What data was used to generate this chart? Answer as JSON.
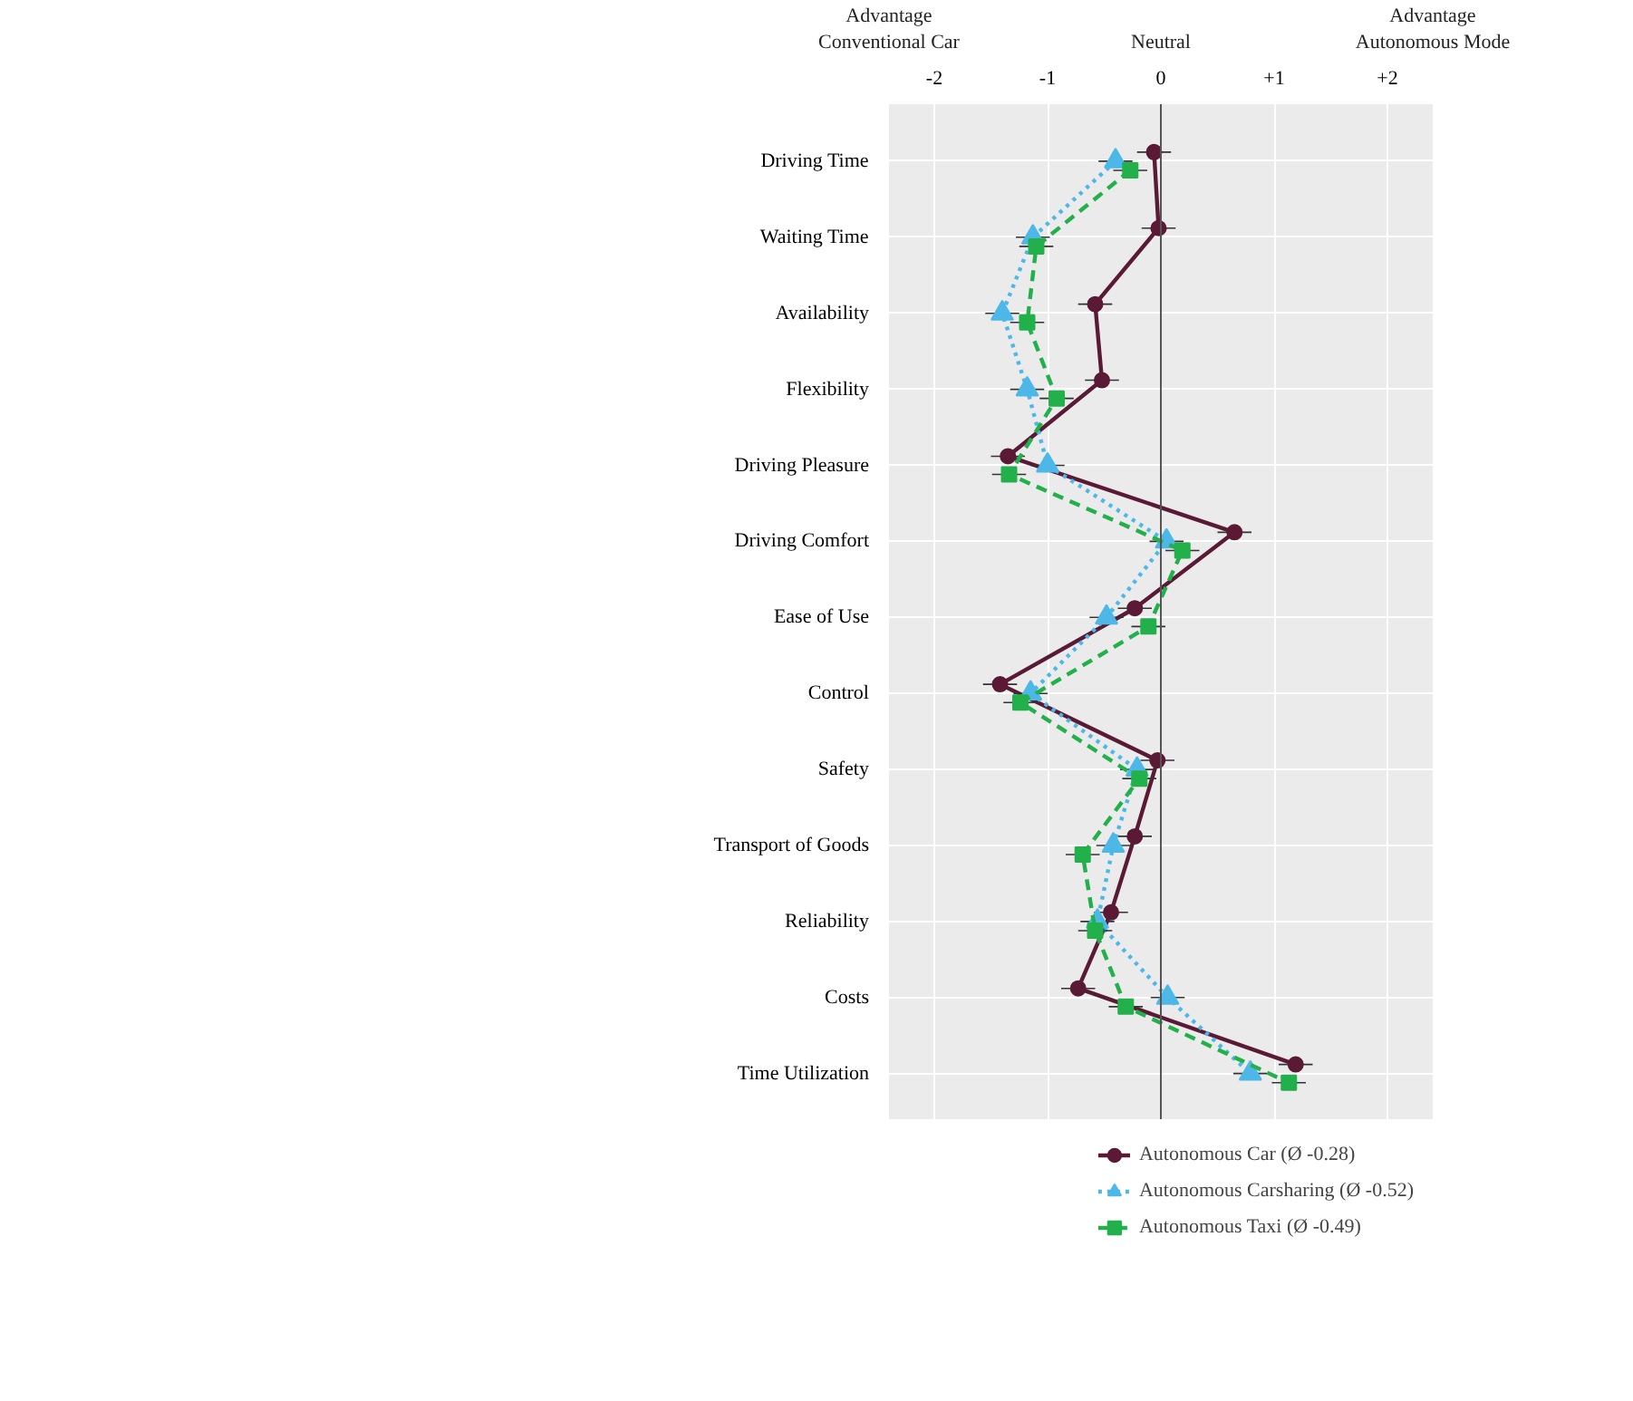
{
  "chart_data": {
    "type": "line",
    "orientation": "horizontal",
    "categories": [
      "Driving Time",
      "Waiting Time",
      "Availability",
      "Flexibility",
      "Driving Pleasure",
      "Driving Comfort",
      "Ease of Use",
      "Control",
      "Safety",
      "Transport of Goods",
      "Reliability",
      "Costs",
      "Time Utilization"
    ],
    "series": [
      {
        "name": "Autonomous Car (Ø -0.28)",
        "color": "#5a1a35",
        "marker": "circle",
        "line_style": "solid",
        "values": [
          -0.06,
          -0.02,
          -0.58,
          -0.52,
          -1.35,
          0.65,
          -0.23,
          -1.42,
          -0.03,
          -0.23,
          -0.44,
          -0.73,
          1.19
        ],
        "errors": [
          0.15,
          0.15,
          0.15,
          0.15,
          0.15,
          0.15,
          0.15,
          0.15,
          0.15,
          0.15,
          0.15,
          0.15,
          0.15
        ]
      },
      {
        "name": "Autonomous Carsharing (Ø -0.52)",
        "color": "#4db8e8",
        "marker": "triangle",
        "line_style": "dotted",
        "values": [
          -0.4,
          -1.13,
          -1.4,
          -1.18,
          -1.0,
          0.05,
          -0.48,
          -1.15,
          -0.21,
          -0.42,
          -0.56,
          0.06,
          0.79
        ],
        "errors": [
          0.15,
          0.15,
          0.15,
          0.15,
          0.15,
          0.15,
          0.15,
          0.15,
          0.15,
          0.15,
          0.15,
          0.15,
          0.15
        ]
      },
      {
        "name": "Autonomous Taxi (Ø -0.49)",
        "color": "#22b04b",
        "marker": "square",
        "line_style": "dashed",
        "values": [
          -0.27,
          -1.1,
          -1.18,
          -0.92,
          -1.34,
          0.19,
          -0.11,
          -1.24,
          -0.19,
          -0.69,
          -0.58,
          -0.31,
          1.13
        ],
        "errors": [
          0.15,
          0.15,
          0.15,
          0.15,
          0.15,
          0.15,
          0.15,
          0.15,
          0.15,
          0.15,
          0.15,
          0.15,
          0.15
        ]
      }
    ],
    "xlim": [
      -2.4,
      2.4
    ],
    "xticks": [
      -2,
      -1,
      0,
      {
        "value": 1,
        "label": "+1"
      },
      {
        "value": 2,
        "label": "+2"
      }
    ],
    "ref_lines": [
      {
        "axis": "x",
        "value": 0,
        "color": "#555555"
      }
    ],
    "annotations": [
      "Advantage\nConventional Car",
      "Neutral",
      "Advantage\nAutonomous Mode"
    ],
    "grid": true,
    "legend": "bottom"
  }
}
